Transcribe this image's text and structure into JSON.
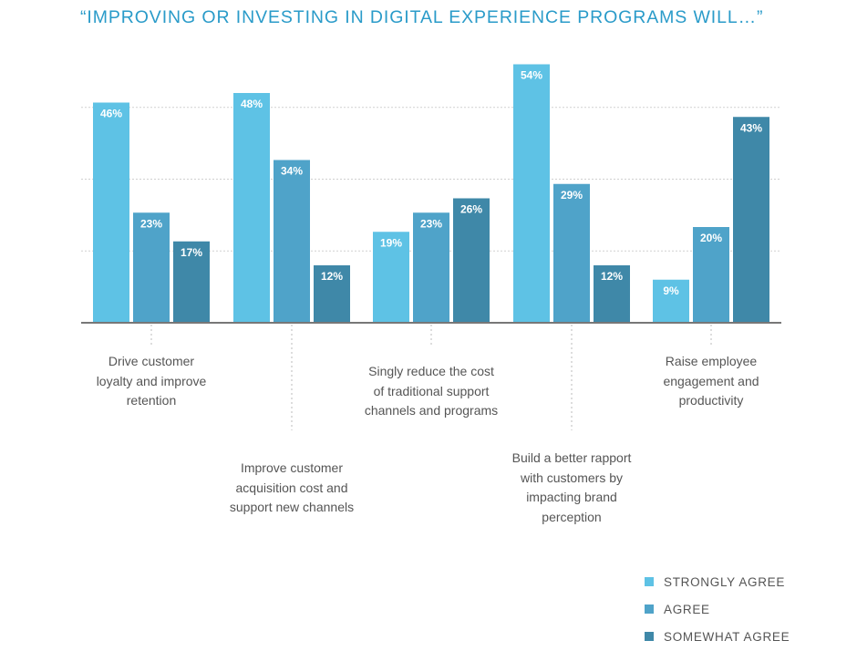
{
  "title": "“IMPROVING OR INVESTING IN DIGITAL EXPERIENCE PROGRAMS WILL…”",
  "colors": {
    "strongly_agree": "#5ec2e5",
    "agree": "#4fa3c9",
    "somewhat_agree": "#3f88a8",
    "title": "#2a9bc9",
    "gridline": "#d0d0d0",
    "axis": "#777777",
    "text": "#555555"
  },
  "chart_data": {
    "type": "bar",
    "title": "“IMPROVING OR INVESTING IN DIGITAL EXPERIENCE PROGRAMS WILL…”",
    "categories": [
      "Drive customer loyalty and improve retention",
      "Improve customer acquisition cost and support new channels",
      "Singly reduce the cost of traditional support channels and programs",
      "Build a better rapport with customers by impacting brand perception",
      "Raise employee engagement and productivity"
    ],
    "series": [
      {
        "name": "STRONGLY AGREE",
        "values": [
          46,
          48,
          19,
          54,
          9
        ]
      },
      {
        "name": "AGREE",
        "values": [
          23,
          34,
          23,
          29,
          20
        ]
      },
      {
        "name": "SOMEWHAT AGREE",
        "values": [
          17,
          12,
          26,
          12,
          43
        ]
      }
    ],
    "value_suffix": "%",
    "ylim": [
      0,
      60
    ],
    "yticks": [
      0,
      15,
      30,
      45
    ],
    "grid": true,
    "xlabel": "",
    "ylabel": "",
    "legend": "bottom-right"
  },
  "category_label_lines": [
    [
      "Drive customer",
      "loyalty and improve",
      "retention"
    ],
    [
      "Improve customer",
      "acquisition cost and",
      "support new channels"
    ],
    [
      "Singly reduce the cost",
      "of traditional support",
      "channels and programs"
    ],
    [
      "Build a better rapport",
      "with customers by",
      "impacting brand",
      "perception"
    ],
    [
      "Raise employee",
      "engagement and",
      "productivity"
    ]
  ],
  "legend": [
    {
      "label": "STRONGLY AGREE",
      "color_key": "strongly_agree"
    },
    {
      "label": "AGREE",
      "color_key": "agree"
    },
    {
      "label": "SOMEWHAT AGREE",
      "color_key": "somewhat_agree"
    }
  ]
}
